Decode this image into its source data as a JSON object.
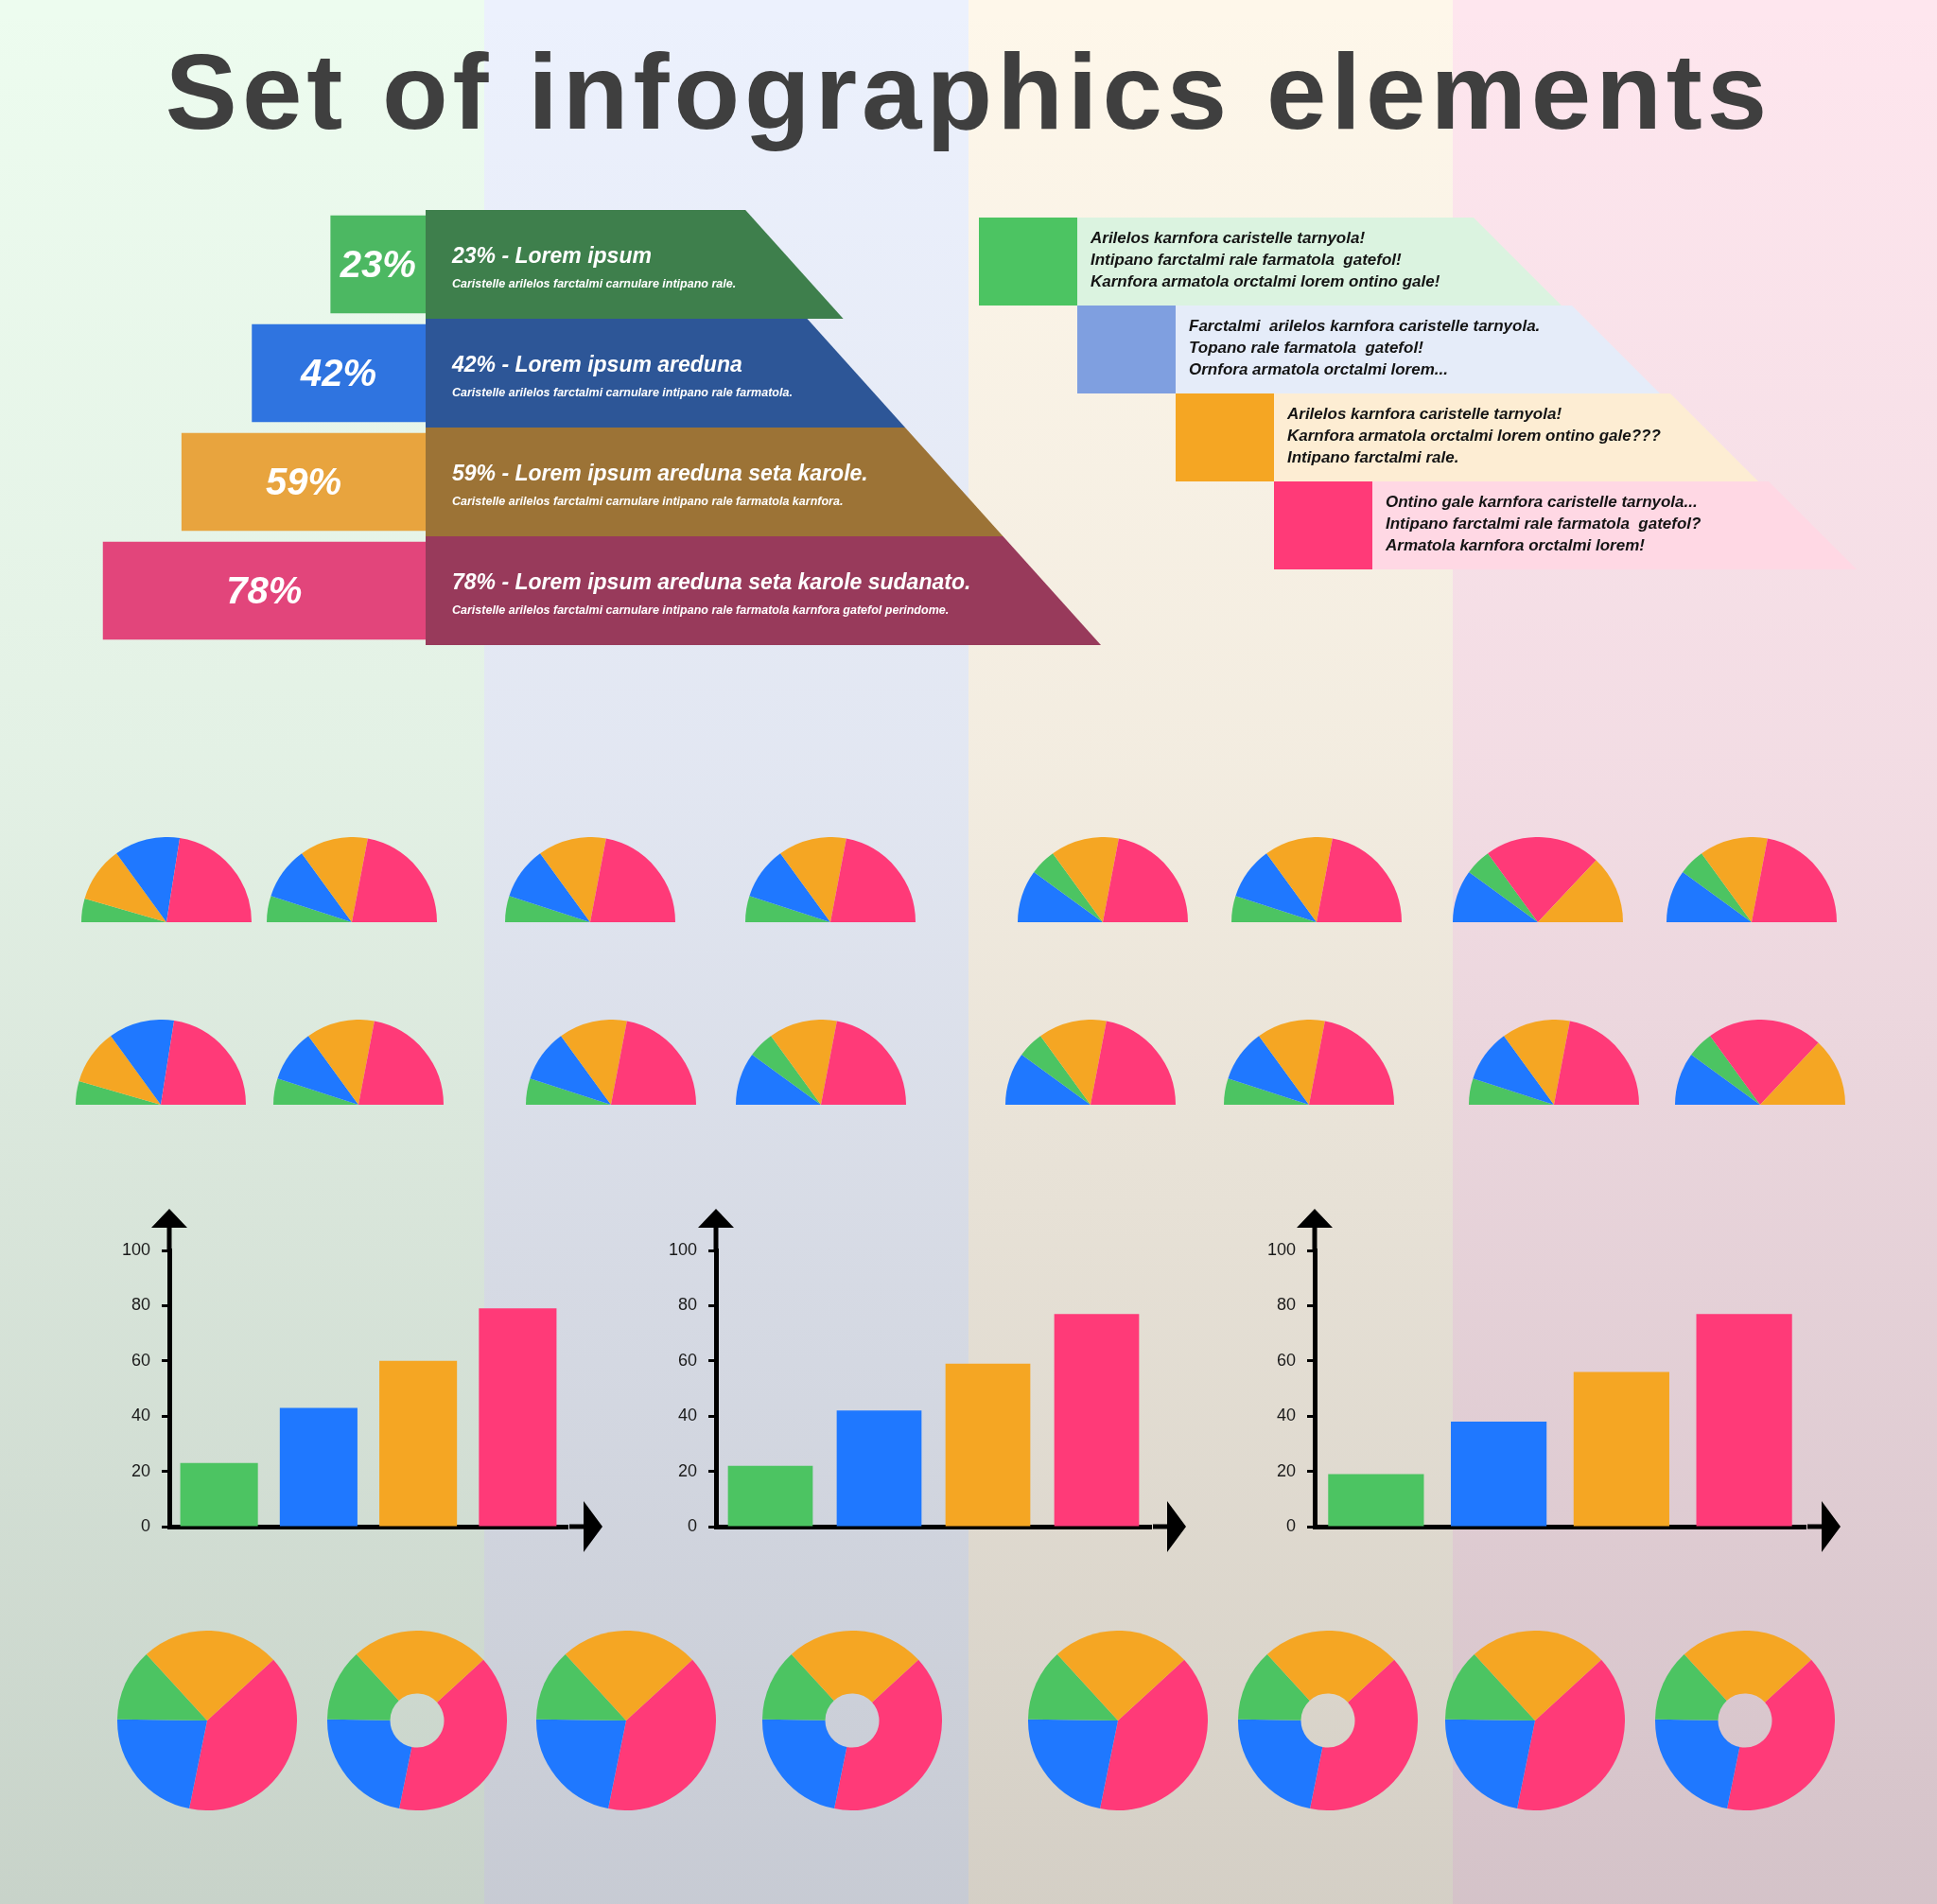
{
  "chart_data": [
    {
      "type": "other",
      "title": "Set of infographics elements"
    },
    {
      "type": "bar",
      "orientation": "horizontal",
      "tick_labels": "y",
      "categories": [
        "23% - Lorem ipsum",
        "42% - Lorem ipsum areduna",
        "59% - Lorem ipsum areduna seta karole.",
        "78% - Lorem ipsum areduna seta karole sudanato."
      ],
      "values": [
        23,
        42,
        59,
        78
      ],
      "colors": [
        "#4cb862",
        "#2f74e0",
        "#e8a43e",
        "#e2457b"
      ],
      "value_labels": [
        "23%",
        "42%",
        "59%",
        "78%"
      ],
      "annotations": [
        "Caristelle arilelos farctalmi carnulare intipano rale.",
        "Caristelle arilelos farctalmi carnulare intipano rale farmatola.",
        "Caristelle arilelos farctalmi carnulare intipano rale farmatola karnfora.",
        "Caristelle arilelos farctalmi carnulare intipano rale farmatola karnfora gatefol perindome."
      ]
    },
    {
      "type": "other",
      "colors": [
        "#4cc462",
        "#7f9fe0",
        "#f5a623",
        "#ff3a78"
      ],
      "annotations": [
        "Arilelos karnfora caristelle tarnyola!",
        "Intipano farctalmi rale farmatola  gatefol!",
        "Karnfora armatola orctalmi lorem ontino gale!",
        "Farctalmi  arilelos karnfora caristelle tarnyola.",
        "Topano rale farmatola  gatefol!",
        "Ornfora armatola orctalmi lorem...",
        "Arilelos karnfora caristelle tarnyola!",
        "Karnfora armatola orctalmi lorem ontino gale???",
        "Intipano farctalmi rale.",
        "Ontino gale karnfora caristelle tarnyola...",
        "Intipano farctalmi rale farmatola  gatefol?",
        "Armatola karnfora orctalmi lorem!"
      ]
    },
    {
      "type": "pie",
      "categories": [
        null,
        null,
        null,
        null
      ],
      "values": [
        9,
        21,
        25,
        45
      ],
      "colors": [
        "#4cc462",
        "#f5a623",
        "#1f78ff",
        "#ff3a78"
      ]
    },
    {
      "type": "pie",
      "categories": [
        null,
        null,
        null,
        null
      ],
      "values": [
        10,
        20,
        26,
        44
      ],
      "colors": [
        "#4cc462",
        "#1f78ff",
        "#f5a623",
        "#ff3a78"
      ]
    },
    {
      "type": "pie",
      "categories": [
        null,
        null,
        null,
        null
      ],
      "values": [
        10,
        20,
        26,
        44
      ],
      "colors": [
        "#4cc462",
        "#1f78ff",
        "#f5a623",
        "#ff3a78"
      ]
    },
    {
      "type": "pie",
      "categories": [
        null,
        null,
        null,
        null
      ],
      "values": [
        10,
        20,
        26,
        44
      ],
      "colors": [
        "#4cc462",
        "#1f78ff",
        "#f5a623",
        "#ff3a78"
      ]
    },
    {
      "type": "pie",
      "categories": [
        null,
        null,
        null,
        null
      ],
      "values": [
        20,
        10,
        26,
        44
      ],
      "colors": [
        "#1f78ff",
        "#4cc462",
        "#f5a623",
        "#ff3a78"
      ]
    },
    {
      "type": "pie",
      "categories": [
        null,
        null,
        null,
        null
      ],
      "values": [
        10,
        20,
        26,
        44
      ],
      "colors": [
        "#4cc462",
        "#1f78ff",
        "#f5a623",
        "#ff3a78"
      ]
    },
    {
      "type": "pie",
      "categories": [
        null,
        null,
        null,
        null
      ],
      "values": [
        20,
        10,
        44,
        26
      ],
      "colors": [
        "#1f78ff",
        "#4cc462",
        "#ff3a78",
        "#f5a623"
      ]
    },
    {
      "type": "pie",
      "categories": [
        null,
        null,
        null,
        null
      ],
      "values": [
        20,
        10,
        26,
        44
      ],
      "colors": [
        "#1f78ff",
        "#4cc462",
        "#f5a623",
        "#ff3a78"
      ]
    },
    {
      "type": "pie",
      "categories": [
        null,
        null,
        null,
        null
      ],
      "values": [
        9,
        21,
        25,
        45
      ],
      "colors": [
        "#4cc462",
        "#f5a623",
        "#1f78ff",
        "#ff3a78"
      ]
    },
    {
      "type": "pie",
      "categories": [
        null,
        null,
        null,
        null
      ],
      "values": [
        10,
        20,
        26,
        44
      ],
      "colors": [
        "#4cc462",
        "#1f78ff",
        "#f5a623",
        "#ff3a78"
      ]
    },
    {
      "type": "pie",
      "categories": [
        null,
        null,
        null,
        null
      ],
      "values": [
        10,
        20,
        26,
        44
      ],
      "colors": [
        "#4cc462",
        "#1f78ff",
        "#f5a623",
        "#ff3a78"
      ]
    },
    {
      "type": "pie",
      "categories": [
        null,
        null,
        null,
        null
      ],
      "values": [
        20,
        10,
        26,
        44
      ],
      "colors": [
        "#1f78ff",
        "#4cc462",
        "#f5a623",
        "#ff3a78"
      ]
    },
    {
      "type": "pie",
      "categories": [
        null,
        null,
        null,
        null
      ],
      "values": [
        20,
        10,
        26,
        44
      ],
      "colors": [
        "#1f78ff",
        "#4cc462",
        "#f5a623",
        "#ff3a78"
      ]
    },
    {
      "type": "pie",
      "categories": [
        null,
        null,
        null,
        null
      ],
      "values": [
        10,
        20,
        26,
        44
      ],
      "colors": [
        "#4cc462",
        "#1f78ff",
        "#f5a623",
        "#ff3a78"
      ]
    },
    {
      "type": "pie",
      "categories": [
        null,
        null,
        null,
        null
      ],
      "values": [
        10,
        20,
        26,
        44
      ],
      "colors": [
        "#4cc462",
        "#1f78ff",
        "#f5a623",
        "#ff3a78"
      ]
    },
    {
      "type": "pie",
      "categories": [
        null,
        null,
        null,
        null
      ],
      "values": [
        20,
        10,
        44,
        26
      ],
      "colors": [
        "#1f78ff",
        "#4cc462",
        "#ff3a78",
        "#f5a623"
      ]
    },
    {
      "type": "bar",
      "categories": [
        null,
        null,
        null,
        null
      ],
      "values": [
        23,
        43,
        60,
        79
      ],
      "colors": [
        "#4cc462",
        "#1f78ff",
        "#f5a623",
        "#ff3a78"
      ],
      "ylim": [
        0,
        100
      ],
      "yticks": [
        0,
        20,
        40,
        60,
        80,
        100
      ],
      "tick_labels": "y"
    },
    {
      "type": "bar",
      "categories": [
        null,
        null,
        null,
        null
      ],
      "values": [
        22,
        42,
        59,
        77
      ],
      "colors": [
        "#4cc462",
        "#1f78ff",
        "#f5a623",
        "#ff3a78"
      ],
      "ylim": [
        0,
        100
      ],
      "yticks": [
        0,
        20,
        40,
        60,
        80,
        100
      ],
      "tick_labels": "y"
    },
    {
      "type": "bar",
      "categories": [
        null,
        null,
        null,
        null
      ],
      "values": [
        19,
        38,
        56,
        77
      ],
      "colors": [
        "#4cc462",
        "#1f78ff",
        "#f5a623",
        "#ff3a78"
      ],
      "ylim": [
        0,
        100
      ],
      "yticks": [
        0,
        20,
        40,
        60,
        80,
        100
      ],
      "tick_labels": "y"
    },
    {
      "type": "pie",
      "categories": [
        null,
        null,
        null,
        null
      ],
      "values": [
        40,
        22,
        13,
        25
      ],
      "colors": [
        "#ff3a78",
        "#1f78ff",
        "#4cc462",
        "#f5a623"
      ]
    },
    {
      "type": "donut",
      "categories": [
        null,
        null,
        null,
        null
      ],
      "values": [
        40,
        22,
        13,
        25
      ],
      "colors": [
        "#ff3a78",
        "#1f78ff",
        "#4cc462",
        "#f5a623"
      ]
    },
    {
      "type": "pie",
      "categories": [
        null,
        null,
        null,
        null
      ],
      "values": [
        40,
        22,
        13,
        25
      ],
      "colors": [
        "#ff3a78",
        "#1f78ff",
        "#4cc462",
        "#f5a623"
      ]
    },
    {
      "type": "donut",
      "categories": [
        null,
        null,
        null,
        null
      ],
      "values": [
        40,
        22,
        13,
        25
      ],
      "colors": [
        "#ff3a78",
        "#1f78ff",
        "#4cc462",
        "#f5a623"
      ]
    },
    {
      "type": "pie",
      "categories": [
        null,
        null,
        null,
        null
      ],
      "values": [
        40,
        22,
        13,
        25
      ],
      "colors": [
        "#ff3a78",
        "#1f78ff",
        "#4cc462",
        "#f5a623"
      ]
    },
    {
      "type": "donut",
      "categories": [
        null,
        null,
        null,
        null
      ],
      "values": [
        40,
        22,
        13,
        25
      ],
      "colors": [
        "#ff3a78",
        "#1f78ff",
        "#4cc462",
        "#f5a623"
      ]
    },
    {
      "type": "pie",
      "categories": [
        null,
        null,
        null,
        null
      ],
      "values": [
        40,
        22,
        13,
        25
      ],
      "colors": [
        "#ff3a78",
        "#1f78ff",
        "#4cc462",
        "#f5a623"
      ]
    },
    {
      "type": "donut",
      "categories": [
        null,
        null,
        null,
        null
      ],
      "values": [
        40,
        22,
        13,
        25
      ],
      "colors": [
        "#ff3a78",
        "#1f78ff",
        "#4cc462",
        "#f5a623"
      ]
    }
  ]
}
